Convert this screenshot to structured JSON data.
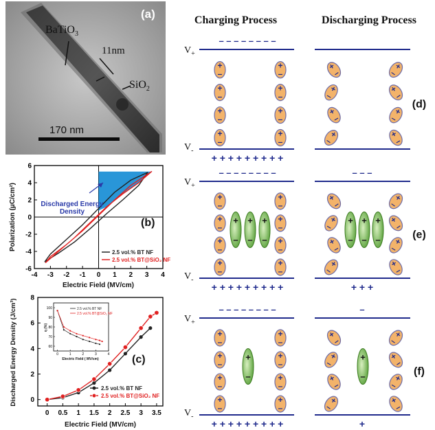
{
  "panel_a": {
    "label": "(a)",
    "material_core": "BaTiO",
    "material_core_sub": "3",
    "material_shell": "SiO",
    "material_shell_sub": "2",
    "shell_thickness": "11nm",
    "scale_bar": "170 nm"
  },
  "panels_right": {
    "charging_title": "Charging Process",
    "discharging_title": "Discharging Process",
    "v_plus": "V",
    "v_plus_sub": "+",
    "v_minus": "V",
    "v_minus_sub": "-",
    "labels": [
      "(d)",
      "(e)",
      "(f)"
    ],
    "rows": [
      {
        "charge_top": "– – – – – – – –",
        "charge_bottom": "+ + + + + + + + +",
        "discharge_top": "",
        "discharge_bottom": ""
      },
      {
        "charge_top": "– – – – – – – –",
        "charge_bottom": "+ + + + + + + + +",
        "discharge_top": "– – –",
        "discharge_bottom": "+ + +"
      },
      {
        "charge_top": "– – – – – – – –",
        "charge_bottom": "+ + + + + + + + +",
        "discharge_top": "–",
        "discharge_bottom": "+"
      }
    ]
  },
  "chart_data": [
    {
      "type": "line",
      "panel": "(b)",
      "title": "",
      "xlabel": "Electric Field (MV/cm)",
      "ylabel": "Polarization (μC/cm²)",
      "xlim": [
        -4,
        4
      ],
      "ylim": [
        -6,
        6
      ],
      "x_ticks": [
        "-4",
        "-3",
        "-2",
        "-1",
        "0",
        "1",
        "2",
        "3",
        "4"
      ],
      "y_ticks": [
        "-6",
        "-4",
        "-2",
        "0",
        "2",
        "4",
        "6"
      ],
      "annotation": "Discharged Energy Density",
      "annotation_line1": "Discharged Energy",
      "annotation_line2": "Density",
      "legend_position": "bottom-right",
      "series": [
        {
          "name": "2.5 vol.% BT NF",
          "color": "#222222",
          "loop_upper": [
            [
              -3.35,
              -5.2
            ],
            [
              -3,
              -4.3
            ],
            [
              -2,
              -2.6
            ],
            [
              -1,
              -0.9
            ],
            [
              0,
              1.0
            ],
            [
              1,
              2.9
            ],
            [
              2,
              4.3
            ],
            [
              3.05,
              5.2
            ]
          ],
          "loop_lower": [
            [
              3.05,
              5.2
            ],
            [
              2.5,
              3.7
            ],
            [
              1.5,
              2.0
            ],
            [
              0.5,
              0.4
            ],
            [
              -0.5,
              -1.3
            ],
            [
              -1.5,
              -2.9
            ],
            [
              -2.5,
              -4.2
            ],
            [
              -3.35,
              -5.2
            ]
          ]
        },
        {
          "name": "2.5 vol.% BT@SiO₂ NF",
          "color": "#e02020",
          "loop_upper": [
            [
              -3.3,
              -5.3
            ],
            [
              -3,
              -4.6
            ],
            [
              -2,
              -3.2
            ],
            [
              -1,
              -1.6
            ],
            [
              0,
              0.2
            ],
            [
              1,
              2.0
            ],
            [
              2,
              3.7
            ],
            [
              3.3,
              5.3
            ]
          ],
          "loop_lower": [
            [
              3.3,
              5.3
            ],
            [
              2.5,
              4.0
            ],
            [
              1.5,
              2.7
            ],
            [
              0.5,
              1.2
            ],
            [
              -0.5,
              -0.6
            ],
            [
              -1.5,
              -2.4
            ],
            [
              -2.5,
              -4.0
            ],
            [
              -3.3,
              -5.3
            ]
          ]
        }
      ]
    },
    {
      "type": "line",
      "panel": "(c)",
      "title": "",
      "xlabel": "Electric Field (MV/cm)",
      "ylabel": "Discharged Energy Density (J/cm³)",
      "xlim": [
        -0.3,
        3.7
      ],
      "ylim": [
        -0.5,
        8
      ],
      "x_ticks": [
        "0",
        "0.5",
        "1",
        "1.5",
        "2",
        "2.5",
        "3",
        "3.5"
      ],
      "y_ticks": [
        "0",
        "2",
        "4",
        "6",
        "8"
      ],
      "legend_position": "bottom-right",
      "x": [
        0,
        0.5,
        1.0,
        1.5,
        2.0,
        2.5,
        3.0,
        3.3,
        3.5
      ],
      "series": [
        {
          "name": "2.5 vol.% BT NF",
          "color": "#222222",
          "values": [
            0,
            0.15,
            0.55,
            1.3,
            2.3,
            3.6,
            4.9,
            5.6,
            null
          ]
        },
        {
          "name": "2.5 vol.% BT@SiO₂ NF",
          "color": "#e02020",
          "values": [
            0,
            0.25,
            0.75,
            1.6,
            2.8,
            4.1,
            5.6,
            6.5,
            6.8
          ]
        }
      ],
      "inset": {
        "xlabel": "Electric Field ( MV/cm)",
        "ylabel": "η (%)",
        "xlim": [
          -0.3,
          4
        ],
        "ylim": [
          55,
          105
        ],
        "x_ticks": [
          "0",
          "1",
          "2",
          "3",
          "4"
        ],
        "y_ticks": [
          "60",
          "70",
          "80",
          "90",
          "100"
        ],
        "x": [
          0,
          0.5,
          1.0,
          1.5,
          2.0,
          2.5,
          3.0,
          3.3,
          3.5
        ],
        "series": [
          {
            "name": "2.5 vol.% BT NF",
            "color": "#222222",
            "values": [
              97,
              77,
              73,
              70,
              67,
              65,
              63,
              62,
              null
            ]
          },
          {
            "name": "2.5 vol.% BT@SiO₂ NF",
            "color": "#e02020",
            "values": [
              97,
              80,
              76,
              73,
              71,
              69,
              67,
              66,
              65
            ]
          }
        ]
      }
    }
  ]
}
